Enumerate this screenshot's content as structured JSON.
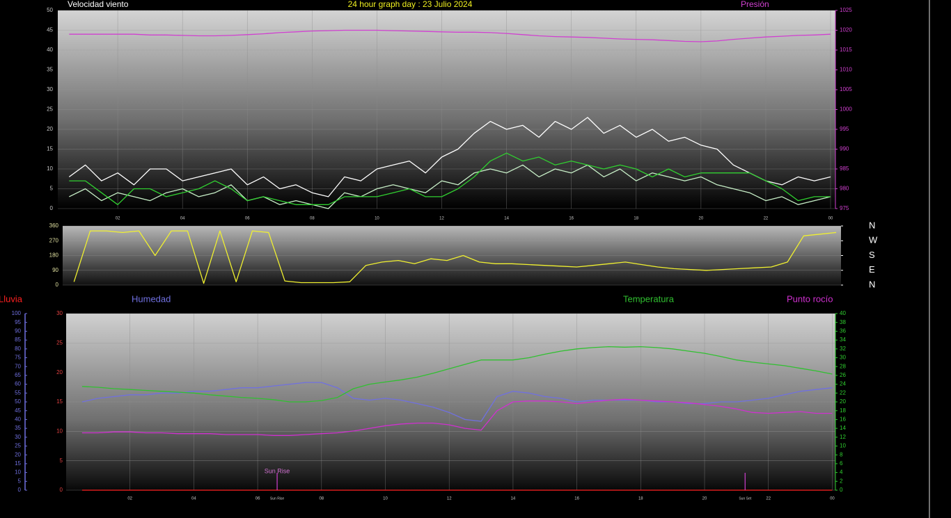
{
  "chart_data": [
    {
      "type": "line",
      "title": "24 hour graph day : 23 Julio 2024",
      "ylabel": "Velocidad viento",
      "y2label": "Presión",
      "xlim": [
        0.15,
        24.15
      ],
      "xticks": [
        {
          "value": 2,
          "label": "02"
        },
        {
          "value": 4,
          "label": "04"
        },
        {
          "value": 6,
          "label": "06"
        },
        {
          "value": 8,
          "label": "08"
        },
        {
          "value": 10,
          "label": "10"
        },
        12,
        14,
        16,
        18,
        20,
        22,
        {
          "value": 24,
          "label": "00"
        }
      ],
      "ylim": [
        0,
        50
      ],
      "yticks": [
        0,
        5,
        10,
        15,
        20,
        25,
        30,
        35,
        40,
        45,
        50
      ],
      "y2lim": [
        975,
        1025
      ],
      "y2ticks": [
        975,
        980,
        985,
        990,
        995,
        1000,
        1005,
        1010,
        1015,
        1020,
        1025
      ],
      "grid": true,
      "x": [
        0.5,
        1,
        1.5,
        2,
        2.5,
        3,
        3.5,
        4,
        4.5,
        5,
        5.5,
        6,
        6.5,
        7,
        7.5,
        8,
        8.5,
        9,
        9.5,
        10,
        10.5,
        11,
        11.5,
        12,
        12.5,
        13,
        13.5,
        14,
        14.5,
        15,
        15.5,
        16,
        16.5,
        17,
        17.5,
        18,
        18.5,
        19,
        19.5,
        20,
        20.5,
        21,
        21.5,
        22,
        22.5,
        23,
        23.5,
        24
      ],
      "series": [
        {
          "color": "#ffffff",
          "values": [
            8,
            11,
            7,
            9,
            6,
            10,
            10,
            7,
            8,
            9,
            10,
            6,
            8,
            5,
            6,
            4,
            3,
            8,
            7,
            10,
            11,
            12,
            9,
            13,
            15,
            19,
            22,
            20,
            21,
            18,
            22,
            20,
            23,
            19,
            21,
            18,
            20,
            17,
            18,
            16,
            15,
            11,
            9,
            7,
            6,
            8,
            7,
            8
          ]
        },
        {
          "color": "#c8f0c8",
          "values": [
            3,
            5,
            2,
            4,
            3,
            2,
            4,
            5,
            3,
            4,
            6,
            2,
            3,
            1,
            2,
            1,
            0,
            4,
            3,
            5,
            6,
            5,
            4,
            7,
            6,
            9,
            10,
            9,
            11,
            8,
            10,
            9,
            11,
            8,
            10,
            7,
            9,
            8,
            7,
            8,
            6,
            5,
            4,
            2,
            3,
            1,
            2,
            3
          ]
        },
        {
          "color": "#30d030",
          "values": [
            7,
            7,
            4,
            1,
            5,
            5,
            3,
            4,
            5,
            7,
            5,
            2,
            3,
            2,
            1,
            1,
            1,
            3,
            3,
            3,
            4,
            5,
            3,
            3,
            5,
            8,
            12,
            14,
            12,
            13,
            11,
            12,
            11,
            10,
            11,
            10,
            8,
            10,
            8,
            9,
            9,
            9,
            9,
            7,
            5,
            2,
            3,
            3
          ]
        },
        {
          "color": "#d040d0",
          "axis": "y2",
          "values": [
            1019,
            1019,
            1019,
            1019,
            1019,
            1018.8,
            1018.8,
            1018.7,
            1018.6,
            1018.6,
            1018.7,
            1018.9,
            1019.1,
            1019.4,
            1019.6,
            1019.8,
            1019.9,
            1020,
            1020,
            1020,
            1019.9,
            1019.8,
            1019.7,
            1019.6,
            1019.5,
            1019.5,
            1019.4,
            1019.2,
            1018.9,
            1018.6,
            1018.4,
            1018.3,
            1018.2,
            1018,
            1017.8,
            1017.7,
            1017.6,
            1017.4,
            1017.2,
            1017.1,
            1017.3,
            1017.7,
            1018,
            1018.3,
            1018.5,
            1018.7,
            1018.8,
            1019
          ]
        }
      ]
    },
    {
      "type": "line",
      "xlim": [
        0.15,
        24.15
      ],
      "ylim": [
        0,
        360
      ],
      "yticks": [
        0,
        90,
        180,
        270,
        360
      ],
      "y2lim": [
        0,
        360
      ],
      "y2ticks": [
        {
          "value": 360,
          "label": "N"
        },
        {
          "value": 270,
          "label": "W"
        },
        {
          "value": 180,
          "label": "S"
        },
        {
          "value": 90,
          "label": "E"
        },
        {
          "value": 0,
          "label": "N"
        }
      ],
      "grid": true,
      "x": [
        0.5,
        1,
        1.5,
        2,
        2.5,
        3,
        3.5,
        4,
        4.5,
        5,
        5.5,
        6,
        6.5,
        7,
        7.5,
        8,
        8.5,
        9,
        9.5,
        10,
        10.5,
        11,
        11.5,
        12,
        12.5,
        13,
        13.5,
        14,
        14.5,
        15,
        15.5,
        16,
        16.5,
        17,
        17.5,
        18,
        18.5,
        19,
        19.5,
        20,
        20.5,
        21,
        21.5,
        22,
        22.5,
        23,
        23.5,
        24
      ],
      "series": [
        {
          "color": "#f0f030",
          "values": [
            20,
            330,
            330,
            320,
            330,
            180,
            330,
            330,
            10,
            330,
            20,
            330,
            320,
            25,
            15,
            15,
            15,
            20,
            120,
            140,
            150,
            130,
            160,
            150,
            180,
            140,
            130,
            130,
            125,
            120,
            115,
            110,
            120,
            130,
            140,
            125,
            110,
            100,
            95,
            90,
            95,
            100,
            105,
            110,
            140,
            300,
            310,
            320
          ]
        }
      ]
    },
    {
      "type": "line",
      "xlim": [
        0,
        24.1
      ],
      "xticks": [
        {
          "value": 2,
          "label": "02"
        },
        {
          "value": 4,
          "label": "04"
        },
        {
          "value": 6,
          "label": "06"
        },
        {
          "value": 8,
          "label": "08"
        },
        {
          "value": 10,
          "label": "10"
        },
        12,
        14,
        16,
        18,
        20,
        22,
        {
          "value": 24,
          "label": "00"
        }
      ],
      "ylim": [
        0,
        30
      ],
      "yticks": [
        0,
        5,
        10,
        15,
        20,
        25,
        30
      ],
      "y2lim": [
        0,
        40
      ],
      "y2ticks": [
        0,
        2,
        4,
        6,
        8,
        10,
        12,
        14,
        16,
        18,
        20,
        22,
        24,
        26,
        28,
        30,
        32,
        34,
        36,
        38,
        40
      ],
      "y3lim": [
        0,
        100
      ],
      "y3ticks": [
        0,
        5,
        10,
        15,
        20,
        25,
        30,
        35,
        40,
        45,
        50,
        55,
        60,
        65,
        70,
        75,
        80,
        85,
        90,
        95,
        100
      ],
      "grid": true,
      "markers": [
        {
          "value": 6.61,
          "label": "Sun Rise"
        },
        {
          "value": 21.27,
          "label": "Sun Set"
        }
      ],
      "annotations": [
        {
          "text": "Sun Rise",
          "x": 6.61
        }
      ],
      "x": [
        0.5,
        1,
        1.5,
        2,
        2.5,
        3,
        3.5,
        4,
        4.5,
        5,
        5.5,
        6,
        6.5,
        7,
        7.5,
        8,
        8.5,
        9,
        9.5,
        10,
        10.5,
        11,
        11.5,
        12,
        12.5,
        13,
        13.5,
        14,
        14.5,
        15,
        15.5,
        16,
        16.5,
        17,
        17.5,
        18,
        18.5,
        19,
        19.5,
        20,
        20.5,
        21,
        21.5,
        22,
        22.5,
        23,
        23.5,
        24
      ],
      "series": [
        {
          "name": "Lluvia",
          "color": "#ff2020",
          "x": [
            0.5,
            24
          ],
          "values": [
            0,
            0
          ]
        },
        {
          "name": "Humedad",
          "color": "#7070e0",
          "axis": "y3",
          "values": [
            50,
            52,
            53,
            54,
            54,
            55,
            55,
            56,
            56,
            57,
            58,
            58,
            59,
            60,
            61,
            61,
            58,
            52,
            51,
            52,
            51,
            49,
            47,
            44,
            40,
            39,
            53,
            56,
            55,
            53,
            52,
            50,
            51,
            51,
            51,
            51,
            50,
            50,
            49,
            49,
            50,
            50,
            51,
            52,
            54,
            56,
            57,
            58
          ]
        },
        {
          "name": "Temperatura",
          "color": "#30c030",
          "axis": "y2",
          "values": [
            23.5,
            23.3,
            23,
            22.8,
            22.6,
            22.4,
            22.2,
            22,
            21.6,
            21.3,
            21,
            20.8,
            20.5,
            20,
            20,
            20.3,
            21,
            23,
            24,
            24.5,
            25,
            25.6,
            26.5,
            27.5,
            28.5,
            29.5,
            29.5,
            29.5,
            30,
            30.8,
            31.5,
            32,
            32.3,
            32.5,
            32.4,
            32.5,
            32.3,
            32,
            31.5,
            31,
            30.3,
            29.5,
            29,
            28.6,
            28.2,
            27.6,
            27,
            26.3
          ]
        },
        {
          "name": "Punto rocío",
          "color": "#d030d0",
          "axis": "y2",
          "values": [
            13,
            13,
            13.2,
            13.2,
            13,
            13,
            12.8,
            12.8,
            12.8,
            12.6,
            12.6,
            12.6,
            12.4,
            12.4,
            12.6,
            12.8,
            13,
            13.4,
            14,
            14.6,
            15,
            15.2,
            15.2,
            14.8,
            14,
            13.6,
            18,
            20,
            20.2,
            20.2,
            20,
            19.6,
            20,
            20.4,
            20.6,
            20.4,
            20.2,
            20,
            19.8,
            19.4,
            19,
            18.4,
            17.6,
            17.4,
            17.6,
            17.8,
            17.4,
            17.4
          ]
        }
      ]
    }
  ]
}
